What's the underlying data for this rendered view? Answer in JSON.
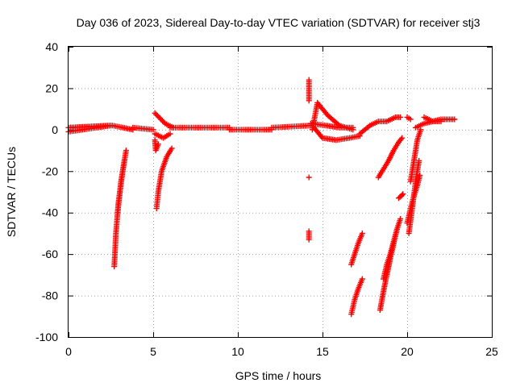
{
  "chart_data": {
    "type": "scatter",
    "title": "Day 036 of 2023, Sidereal Day-to-day VTEC variation (SDTVAR) for receiver stj3",
    "xlabel": "GPS time / hours",
    "ylabel": "SDTVAR / TECUs",
    "xlim": [
      0,
      25
    ],
    "ylim": [
      -100,
      40
    ],
    "xticks": [
      0,
      5,
      10,
      15,
      20,
      25
    ],
    "yticks": [
      -100,
      -80,
      -60,
      -40,
      -20,
      0,
      20,
      40
    ],
    "grid": true,
    "legend": "none",
    "marker": "plus",
    "color": "#ff0000",
    "segments": [
      {
        "x": [
          0.0,
          2.5,
          0.0,
          2.5
        ],
        "y": [
          -1,
          2,
          1,
          2
        ]
      },
      {
        "x": [
          2.6,
          3.8
        ],
        "y": [
          2,
          0
        ]
      },
      {
        "x": [
          3.8,
          5.0
        ],
        "y": [
          1,
          0
        ]
      },
      {
        "x": [
          5.1,
          5.7,
          6.2
        ],
        "y": [
          8,
          3,
          1
        ]
      },
      {
        "x": [
          5.1,
          5.6,
          6.0
        ],
        "y": [
          -2,
          -4,
          -2
        ]
      },
      {
        "x": [
          6.0,
          9.5
        ],
        "y": [
          1,
          1
        ]
      },
      {
        "x": [
          9.5,
          12.0
        ],
        "y": [
          0,
          0
        ]
      },
      {
        "x": [
          12.0,
          14.3
        ],
        "y": [
          1,
          2
        ]
      },
      {
        "x": [
          2.7,
          2.8,
          2.95,
          3.2,
          3.4
        ],
        "y": [
          -66,
          -50,
          -35,
          -20,
          -10
        ]
      },
      {
        "x": [
          2.9,
          3.1,
          3.3
        ],
        "y": [
          -40,
          -25,
          -15
        ]
      },
      {
        "x": [
          5.1,
          5.15,
          5.3
        ],
        "y": [
          -5,
          -10,
          -7
        ]
      },
      {
        "x": [
          5.2,
          5.3,
          5.5,
          5.8,
          6.1
        ],
        "y": [
          -38,
          -30,
          -20,
          -13,
          -9
        ]
      },
      {
        "x": [
          14.2,
          14.2,
          14.2,
          14.2,
          14.2
        ],
        "y": [
          24,
          14,
          -23,
          -49,
          -53
        ]
      },
      {
        "x": [
          14.4,
          14.7,
          15.3,
          16.0,
          16.8
        ],
        "y": [
          0,
          13,
          7,
          2,
          0
        ]
      },
      {
        "x": [
          14.5,
          15.0,
          15.8,
          16.6,
          17.2
        ],
        "y": [
          1,
          -4,
          -5,
          -4,
          -3
        ]
      },
      {
        "x": [
          14.3,
          15.2,
          16.0,
          16.8
        ],
        "y": [
          3,
          2,
          1,
          1
        ]
      },
      {
        "x": [
          16.7,
          16.9,
          17.1,
          17.35
        ],
        "y": [
          -65,
          -60,
          -55,
          -50
        ]
      },
      {
        "x": [
          16.7,
          16.9,
          17.1,
          17.35
        ],
        "y": [
          -89,
          -82,
          -77,
          -72
        ]
      },
      {
        "x": [
          17.2,
          17.8,
          18.3,
          18.8,
          19.3,
          19.6
        ],
        "y": [
          -2,
          2,
          4,
          4,
          6,
          6
        ]
      },
      {
        "x": [
          18.3,
          18.6,
          18.9,
          19.2,
          19.5,
          19.7
        ],
        "y": [
          -23,
          -19,
          -15,
          -10,
          -6,
          -4
        ]
      },
      {
        "x": [
          18.4,
          18.6,
          18.8,
          19.0,
          19.2
        ],
        "y": [
          -87,
          -78,
          -70,
          -62,
          -55
        ]
      },
      {
        "x": [
          18.6,
          18.8,
          19.0,
          19.2,
          19.4
        ],
        "y": [
          -72,
          -65,
          -60,
          -54,
          -48
        ]
      },
      {
        "x": [
          18.8,
          19.0,
          19.2,
          19.4,
          19.6
        ],
        "y": [
          -70,
          -62,
          -55,
          -48,
          -43
        ]
      },
      {
        "x": [
          19.5,
          19.65,
          19.75
        ],
        "y": [
          -33,
          -32,
          -31
        ]
      },
      {
        "x": [
          20.0,
          20.2,
          20.4,
          20.6,
          20.75
        ],
        "y": [
          -45,
          -38,
          -32,
          -27,
          -22
        ]
      },
      {
        "x": [
          20.1,
          20.3,
          20.5,
          20.7
        ],
        "y": [
          -50,
          -38,
          -25,
          -15
        ]
      },
      {
        "x": [
          20.2,
          20.4,
          20.6,
          20.8
        ],
        "y": [
          -25,
          -15,
          -5,
          0
        ]
      },
      {
        "x": [
          20.0,
          20.2
        ],
        "y": [
          6,
          5
        ]
      },
      {
        "x": [
          20.5,
          21.0,
          21.5,
          22.0
        ],
        "y": [
          1,
          3,
          4,
          4
        ]
      },
      {
        "x": [
          21.0,
          21.5,
          22.0,
          22.8
        ],
        "y": [
          6,
          4,
          5,
          5
        ]
      }
    ]
  }
}
